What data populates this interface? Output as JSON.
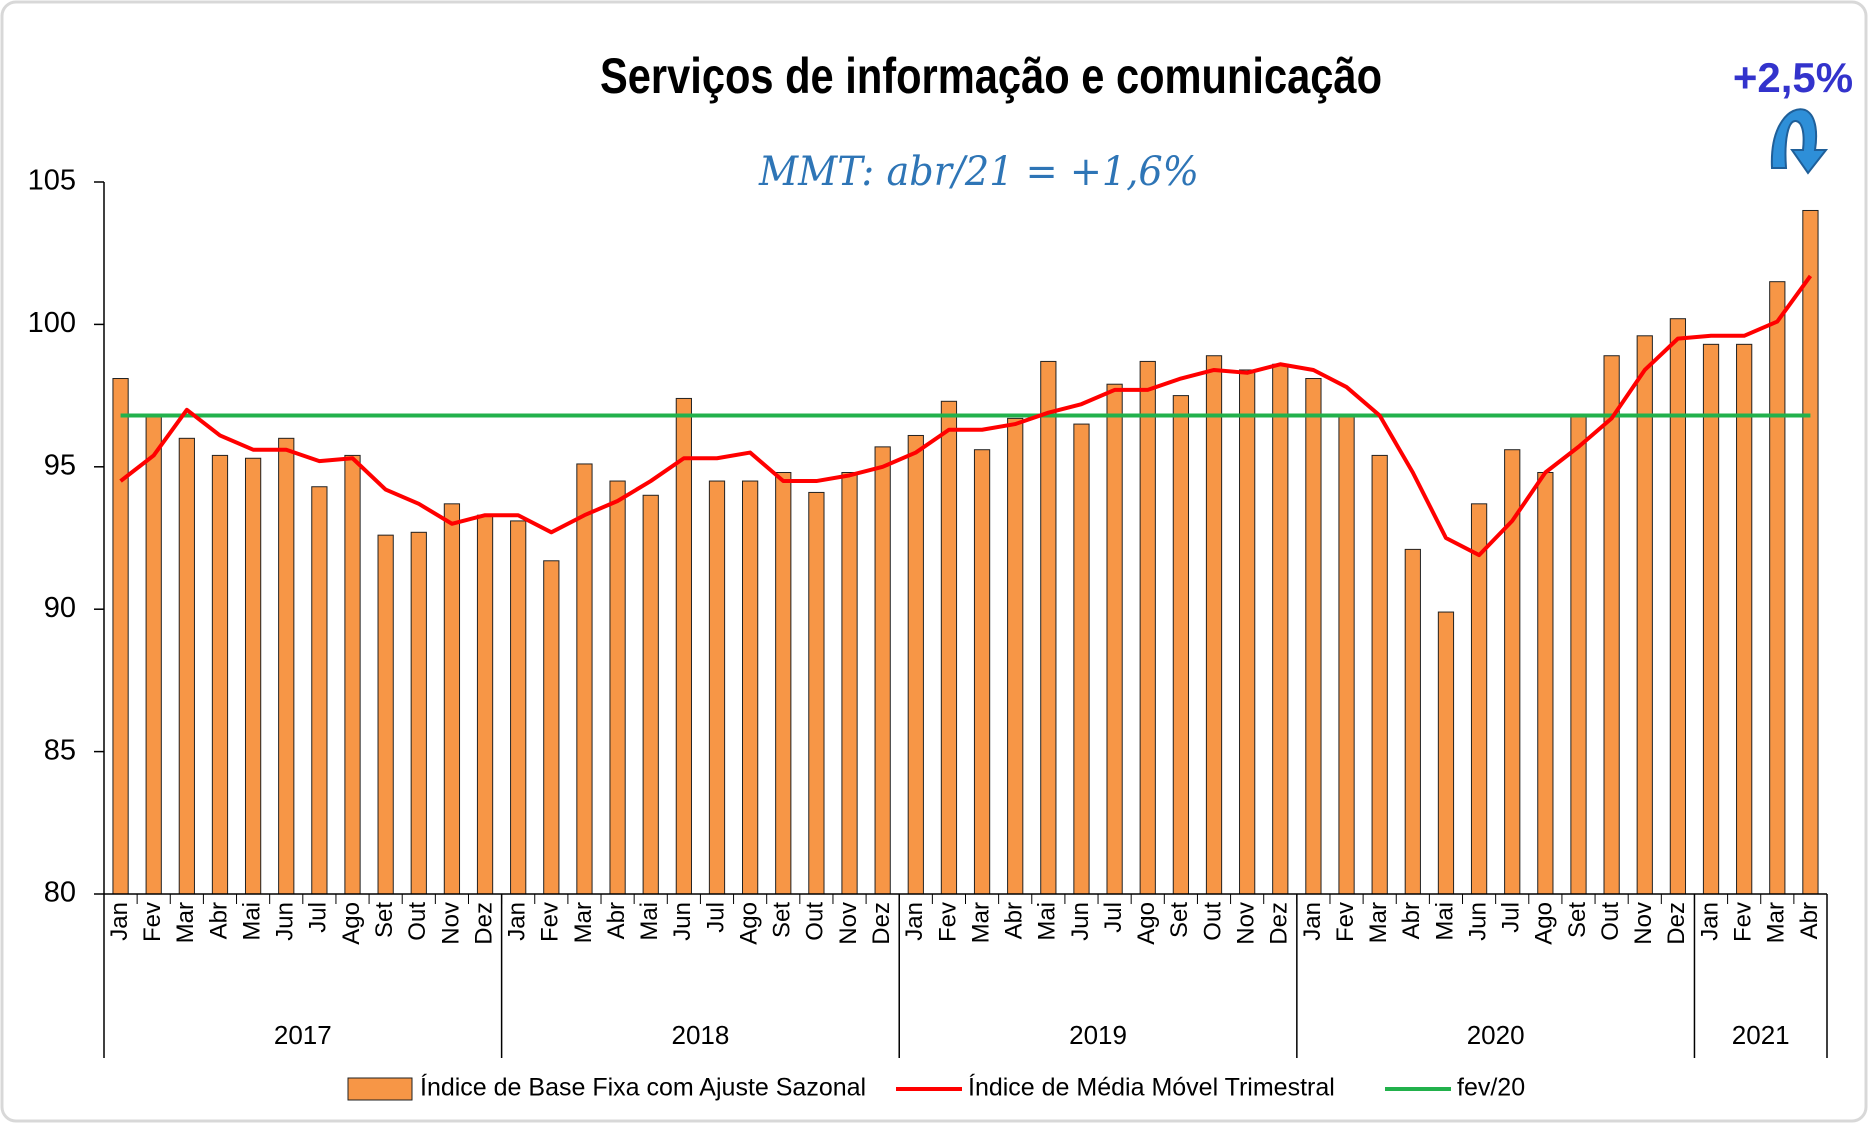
{
  "chart_data": {
    "type": "bar-line",
    "title": "Serviços de informação e comunicação",
    "subtitle": "MMT: abr/21 = +1,6%",
    "annotation": "+2,5%",
    "categories": [
      "Jan",
      "Fev",
      "Mar",
      "Abr",
      "Mai",
      "Jun",
      "Jul",
      "Ago",
      "Set",
      "Out",
      "Nov",
      "Dez",
      "Jan",
      "Fev",
      "Mar",
      "Abr",
      "Mai",
      "Jun",
      "Jul",
      "Ago",
      "Set",
      "Out",
      "Nov",
      "Dez",
      "Jan",
      "Fev",
      "Mar",
      "Abr",
      "Mai",
      "Jun",
      "Jul",
      "Ago",
      "Set",
      "Out",
      "Nov",
      "Dez",
      "Jan",
      "Fev",
      "Mar",
      "Abr",
      "Mai",
      "Jun",
      "Jul",
      "Ago",
      "Set",
      "Out",
      "Nov",
      "Dez",
      "Jan",
      "Fev",
      "Mar",
      "Abr"
    ],
    "groups": [
      {
        "label": "2017",
        "size": 12
      },
      {
        "label": "2018",
        "size": 12
      },
      {
        "label": "2019",
        "size": 12
      },
      {
        "label": "2020",
        "size": 12
      },
      {
        "label": "2021",
        "size": 4
      }
    ],
    "series": [
      {
        "name": "Índice de Base Fixa com Ajuste Sazonal",
        "kind": "bar",
        "color": "#f79646",
        "values": [
          98.1,
          96.8,
          96.0,
          95.4,
          95.3,
          96.0,
          94.3,
          95.4,
          92.6,
          92.7,
          93.7,
          93.3,
          93.1,
          91.7,
          95.1,
          94.5,
          94.0,
          97.4,
          94.5,
          94.5,
          94.8,
          94.1,
          94.8,
          95.7,
          96.1,
          97.3,
          95.6,
          96.7,
          98.7,
          96.5,
          97.9,
          98.7,
          97.5,
          98.9,
          98.4,
          98.6,
          98.1,
          96.8,
          95.4,
          92.1,
          89.9,
          93.7,
          95.6,
          94.8,
          96.8,
          98.9,
          99.6,
          100.2,
          99.3,
          99.3,
          101.5,
          104.0
        ]
      },
      {
        "name": "Índice de Média Móvel Trimestral",
        "kind": "line",
        "color": "#ff0000",
        "values": [
          94.5,
          95.4,
          97.0,
          96.1,
          95.6,
          95.6,
          95.2,
          95.3,
          94.2,
          93.7,
          93.0,
          93.3,
          93.3,
          92.7,
          93.3,
          93.8,
          94.5,
          95.3,
          95.3,
          95.5,
          94.5,
          94.5,
          94.7,
          95.0,
          95.5,
          96.3,
          96.3,
          96.5,
          96.9,
          97.2,
          97.7,
          97.7,
          98.1,
          98.4,
          98.3,
          98.6,
          98.4,
          97.8,
          96.8,
          94.8,
          92.5,
          91.9,
          93.1,
          94.8,
          95.7,
          96.7,
          98.4,
          99.5,
          99.6,
          99.6,
          100.1,
          101.7
        ]
      },
      {
        "name": "fev/20",
        "kind": "hline",
        "color": "#22b14c",
        "value": 96.8
      }
    ],
    "ylim": [
      80,
      105
    ],
    "yticks": [
      80,
      85,
      90,
      95,
      100,
      105
    ]
  }
}
